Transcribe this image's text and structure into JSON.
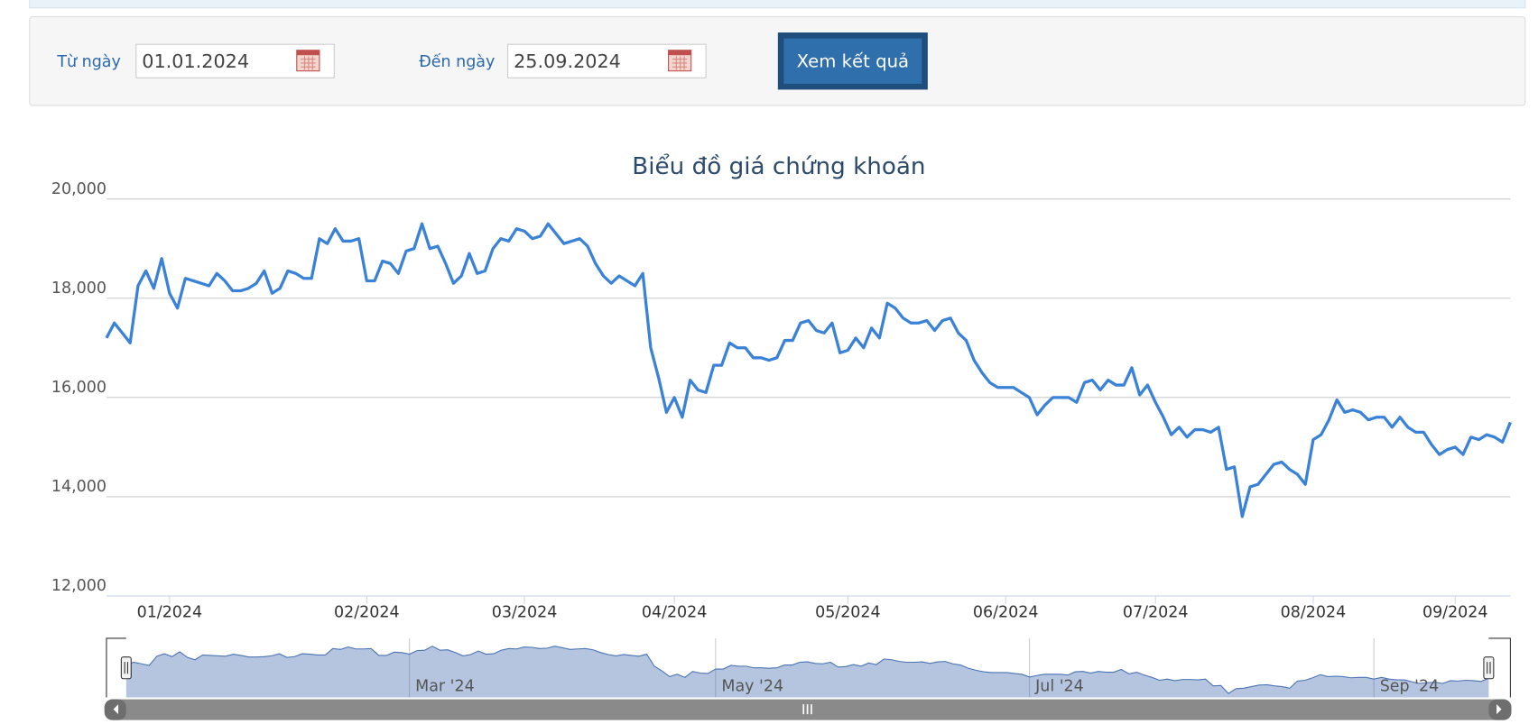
{
  "form": {
    "from_label": "Từ ngày",
    "from_value": "01.01.2024",
    "to_label": "Đến ngày",
    "to_value": "25.09.2024",
    "button": "Xem kết quả"
  },
  "chart_data": {
    "type": "line",
    "title": "Biểu đồ giá chứng khoán",
    "color": "#3a82d8",
    "grid": true,
    "ylim": [
      12000,
      20000
    ],
    "yticks": [
      {
        "value": 12000,
        "label": "12,000"
      },
      {
        "value": 14000,
        "label": "14,000"
      },
      {
        "value": 16000,
        "label": "16,000"
      },
      {
        "value": 18000,
        "label": "18,000"
      },
      {
        "value": 20000,
        "label": "20,000"
      }
    ],
    "values": [
      17200,
      17500,
      17300,
      17100,
      18250,
      18550,
      18200,
      18800,
      18100,
      17800,
      18400,
      18350,
      18300,
      18250,
      18500,
      18350,
      18150,
      18150,
      18200,
      18300,
      18550,
      18100,
      18200,
      18550,
      18500,
      18400,
      18400,
      19200,
      19100,
      19400,
      19150,
      19150,
      19200,
      18350,
      18350,
      18750,
      18700,
      18500,
      18950,
      19000,
      19500,
      19000,
      19050,
      18700,
      18300,
      18450,
      18900,
      18500,
      18550,
      19000,
      19200,
      19150,
      19400,
      19350,
      19200,
      19250,
      19500,
      19300,
      19100,
      19150,
      19200,
      19050,
      18700,
      18450,
      18300,
      18450,
      18350,
      18250,
      18500,
      17000,
      16400,
      15700,
      16000,
      15600,
      16350,
      16150,
      16100,
      16650,
      16650,
      17100,
      17000,
      17000,
      16800,
      16800,
      16750,
      16800,
      17150,
      17150,
      17500,
      17550,
      17350,
      17300,
      17500,
      16900,
      16950,
      17200,
      17000,
      17400,
      17200,
      17900,
      17800,
      17600,
      17500,
      17500,
      17550,
      17350,
      17550,
      17600,
      17300,
      17150,
      16750,
      16500,
      16300,
      16200,
      16200,
      16200,
      16100,
      16000,
      15650,
      15850,
      16000,
      16000,
      16000,
      15900,
      16300,
      16350,
      16150,
      16350,
      16250,
      16250,
      16600,
      16050,
      16250,
      15900,
      15600,
      15250,
      15400,
      15200,
      15350,
      15350,
      15300,
      15400,
      14550,
      14600,
      13600,
      14200,
      14250,
      14450,
      14650,
      14700,
      14550,
      14450,
      14250,
      15150,
      15250,
      15550,
      15950,
      15700,
      15750,
      15700,
      15550,
      15600,
      15600,
      15400,
      15600,
      15400,
      15300,
      15300,
      15050,
      14850,
      14950,
      15000,
      14850,
      15200,
      15150,
      15250,
      15200,
      15100,
      15500
    ],
    "categories": [
      null,
      null,
      null,
      null,
      null,
      null,
      null,
      null,
      "01/2024",
      null,
      null,
      null,
      null,
      null,
      null,
      null,
      null,
      null,
      null,
      null,
      null,
      null,
      null,
      null,
      null,
      null,
      null,
      null,
      null,
      null,
      null,
      null,
      null,
      "02/2024",
      null,
      null,
      null,
      null,
      null,
      null,
      null,
      null,
      null,
      null,
      null,
      null,
      null,
      null,
      null,
      null,
      null,
      null,
      null,
      "03/2024",
      null,
      null,
      null,
      null,
      null,
      null,
      null,
      null,
      null,
      null,
      null,
      null,
      null,
      null,
      null,
      null,
      null,
      null,
      "04/2024",
      null,
      null,
      null,
      null,
      null,
      null,
      null,
      null,
      null,
      null,
      null,
      null,
      null,
      null,
      null,
      null,
      null,
      null,
      null,
      null,
      null,
      "05/2024",
      null,
      null,
      null,
      null,
      null,
      null,
      null,
      null,
      null,
      null,
      null,
      null,
      null,
      null,
      null,
      null,
      null,
      null,
      null,
      "06/2024",
      null,
      null,
      null,
      null,
      null,
      null,
      null,
      null,
      null,
      null,
      null,
      null,
      null,
      null,
      null,
      null,
      null,
      null,
      "07/2024",
      null,
      null,
      null,
      null,
      null,
      null,
      null,
      null,
      null,
      null,
      null,
      null,
      null,
      null,
      null,
      null,
      null,
      null,
      null,
      "08/2024",
      null,
      null,
      null,
      null,
      null,
      null,
      null,
      null,
      null,
      null,
      null,
      null,
      null,
      null,
      null,
      null,
      null,
      "09/2024",
      null,
      null,
      null,
      null,
      null,
      null,
      null
    ],
    "navigator_categories": [
      null,
      null,
      null,
      null,
      null,
      null,
      null,
      null,
      null,
      null,
      null,
      null,
      null,
      null,
      null,
      null,
      null,
      null,
      null,
      null,
      null,
      null,
      null,
      null,
      null,
      null,
      null,
      null,
      null,
      null,
      null,
      null,
      null,
      null,
      null,
      null,
      null,
      "Mar '24",
      null,
      null,
      null,
      null,
      null,
      null,
      null,
      null,
      null,
      null,
      null,
      null,
      null,
      null,
      null,
      null,
      null,
      null,
      null,
      null,
      null,
      null,
      null,
      null,
      null,
      null,
      null,
      null,
      null,
      null,
      null,
      null,
      null,
      null,
      null,
      null,
      null,
      null,
      null,
      "May '24",
      null,
      null,
      null,
      null,
      null,
      null,
      null,
      null,
      null,
      null,
      null,
      null,
      null,
      null,
      null,
      null,
      null,
      null,
      null,
      null,
      null,
      null,
      null,
      null,
      null,
      null,
      null,
      null,
      null,
      null,
      null,
      null,
      null,
      null,
      null,
      null,
      null,
      null,
      null,
      null,
      "Jul '24",
      null,
      null,
      null,
      null,
      null,
      null,
      null,
      null,
      null,
      null,
      null,
      null,
      null,
      null,
      null,
      null,
      null,
      null,
      null,
      null,
      null,
      null,
      null,
      null,
      null,
      null,
      null,
      null,
      null,
      null,
      null,
      null,
      null,
      null,
      null,
      null,
      null,
      null,
      null,
      null,
      null,
      null,
      null,
      null,
      "Sep '24",
      null,
      null,
      null,
      null,
      null,
      null,
      null,
      null,
      null,
      null,
      null,
      null,
      null,
      null,
      null
    ]
  }
}
